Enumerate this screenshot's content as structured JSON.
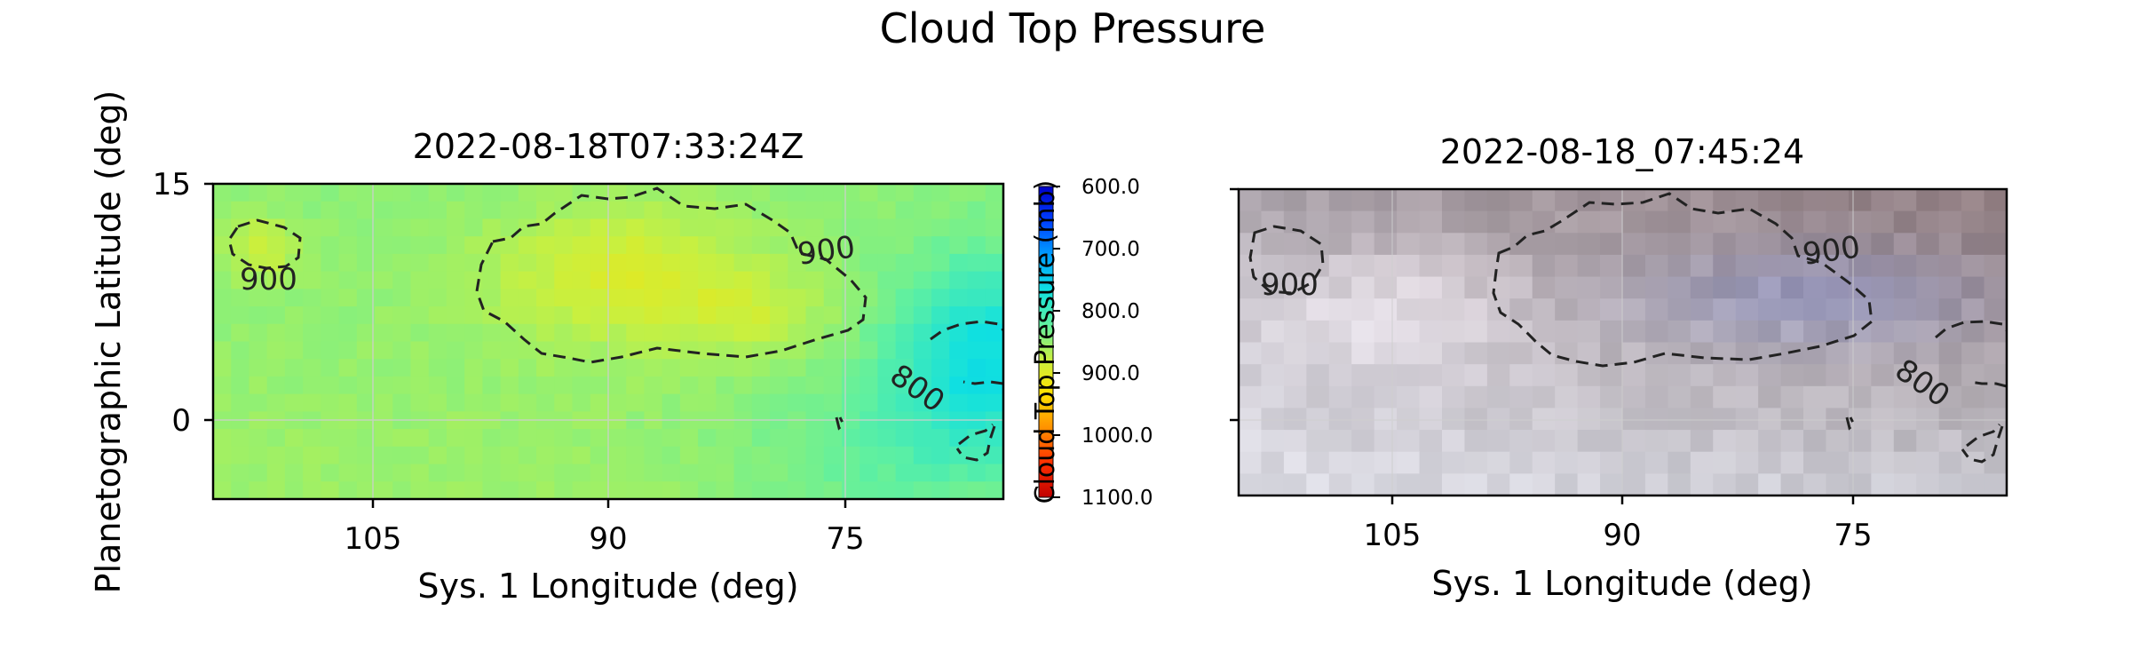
{
  "figure": {
    "title": "Cloud Top Pressure"
  },
  "chart_data": [
    {
      "type": "heatmap",
      "title": "2022-08-18T07:33:24Z",
      "xlabel": "Sys. 1 Longitude (deg)",
      "ylabel": "Planetographic Latitude (deg)",
      "xlim": [
        115,
        63
      ],
      "ylim": [
        -5,
        15
      ],
      "xticks": [
        105,
        90,
        75
      ],
      "yticks": [
        0,
        15
      ],
      "grid": true,
      "colormap": "jet_r",
      "contours": [
        {
          "level": 900,
          "label": "900",
          "style": "dashed",
          "color": "#222222"
        },
        {
          "level": 800,
          "label": "800",
          "style": "dashed",
          "color": "#222222"
        }
      ],
      "colorbar": {
        "label": "Cloud Top Pressure (mb)",
        "range": [
          600,
          1100
        ],
        "ticks": [
          "600.0",
          "700.0",
          "800.0",
          "900.0",
          "1000.0",
          "1100.0"
        ],
        "colors": [
          "#0000c8",
          "#0040ff",
          "#00a0ff",
          "#10e0e0",
          "#60f0a0",
          "#c8f040",
          "#ffe000",
          "#ff9000",
          "#ff3000",
          "#c00000"
        ]
      }
    },
    {
      "type": "heatmap",
      "title": "2022-08-18_07:45:24",
      "xlabel": "Sys. 1 Longitude (deg)",
      "xlim": [
        115,
        65
      ],
      "ylim": [
        -5,
        15
      ],
      "xticks": [
        105,
        90,
        75
      ],
      "grid": true,
      "colormap": "true-color image",
      "contours": [
        {
          "level": 900,
          "label": "900",
          "style": "dashed",
          "color": "#222222"
        },
        {
          "level": 800,
          "label": "800",
          "style": "dashed",
          "color": "#222222"
        }
      ]
    }
  ]
}
